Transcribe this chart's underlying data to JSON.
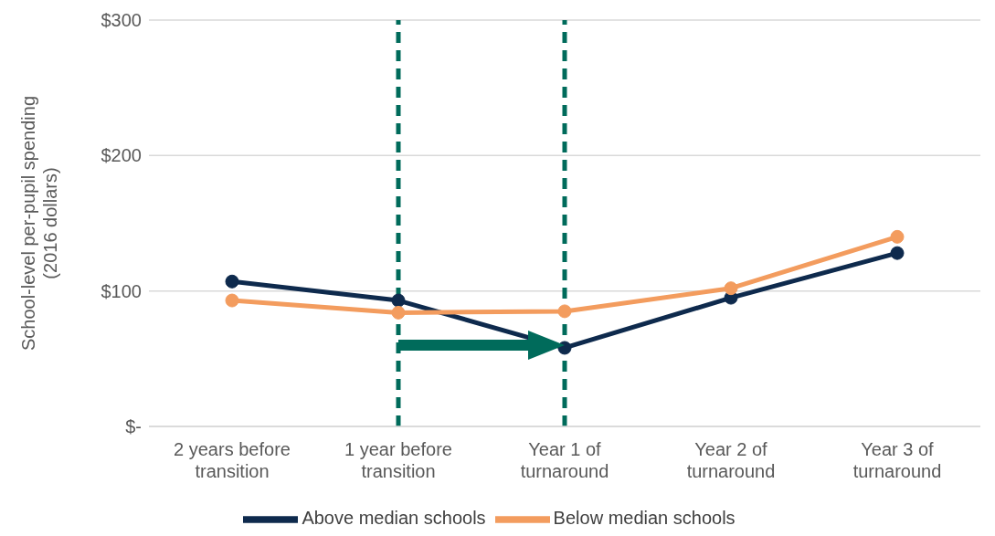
{
  "chart_data": {
    "type": "line",
    "ylabel": "School-level per-pupil spending\n(2016 dollars)",
    "categories": [
      "2 years before transition",
      "1 year before transition",
      "Year 1 of turnaround",
      "Year 2 of turnaround",
      "Year 3 of turnaround"
    ],
    "series": [
      {
        "name": "Above median schools",
        "color": "#0e2a4d",
        "values": [
          107,
          93,
          58,
          95,
          128
        ]
      },
      {
        "name": "Below median schools",
        "color": "#f39c5e",
        "values": [
          93,
          84,
          85,
          102,
          140
        ]
      }
    ],
    "ylim": [
      0,
      300
    ],
    "yticks": [
      {
        "value": 0,
        "label": "$-"
      },
      {
        "value": 100,
        "label": "$100"
      },
      {
        "value": 200,
        "label": "$200"
      },
      {
        "value": 300,
        "label": "$300"
      }
    ],
    "grid": "y",
    "legend": "bottom",
    "marker": "circle",
    "line_style": "solid",
    "ref_lines": [
      {
        "axis": "x",
        "value": "1 year before transition",
        "color": "#006b5b",
        "line_style": "dashed"
      },
      {
        "axis": "x",
        "value": "Year 1 of turnaround",
        "color": "#006b5b",
        "line_style": "dashed"
      }
    ]
  }
}
